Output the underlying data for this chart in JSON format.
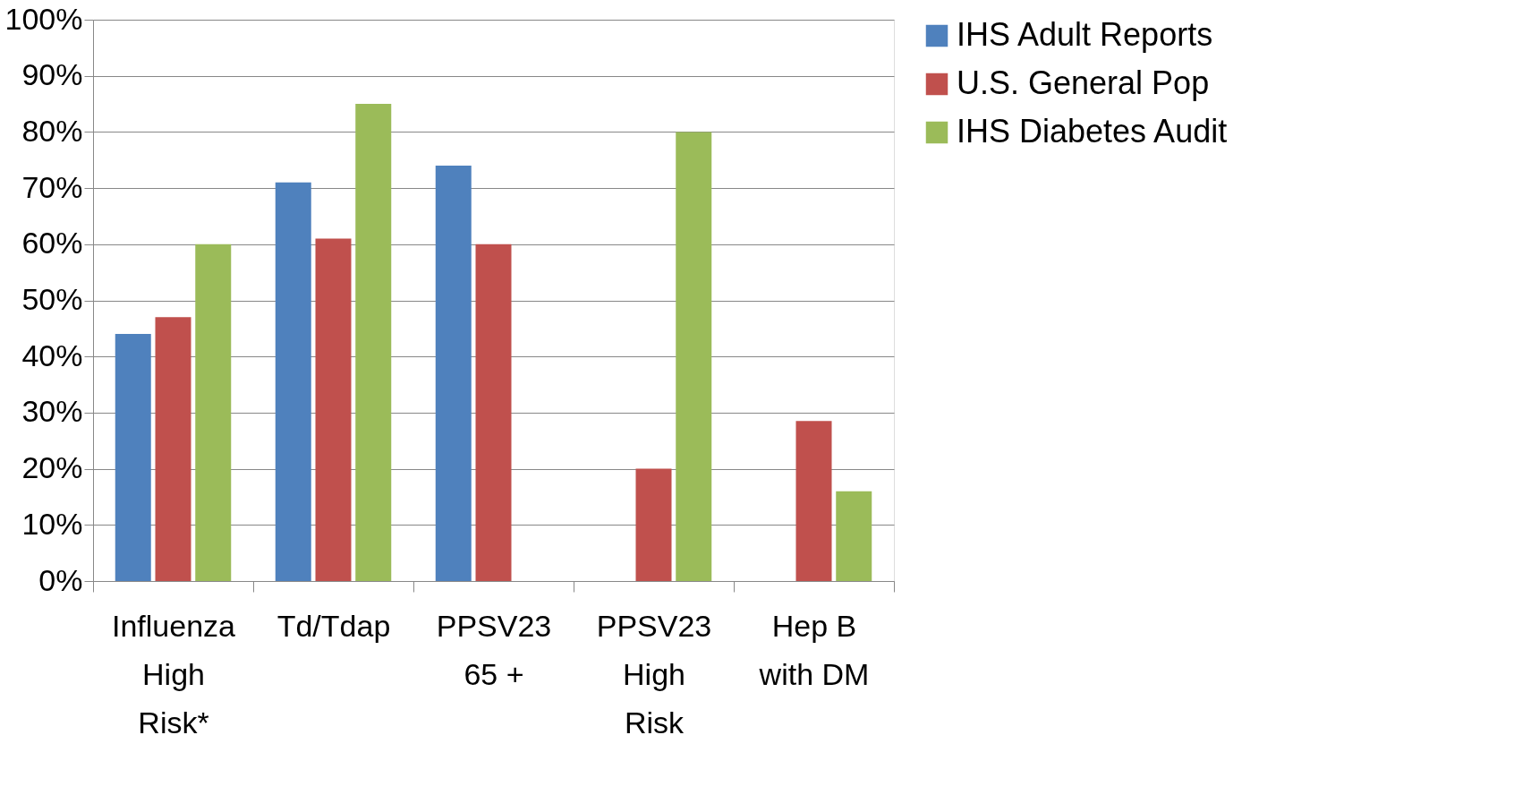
{
  "chart_data": {
    "type": "bar",
    "categories": [
      "Influenza High Risk*",
      "Td/Tdap",
      "PPSV23 65 +",
      "PPSV23 High Risk",
      "Hep B with DM"
    ],
    "series": [
      {
        "name": "IHS Adult Reports",
        "color": "#4f81bd",
        "values": [
          44,
          71,
          74,
          null,
          null
        ]
      },
      {
        "name": "U.S. General Pop",
        "color": "#c0504d",
        "values": [
          47,
          61,
          60,
          20,
          28.5
        ]
      },
      {
        "name": "IHS Diabetes Audit",
        "color": "#9bbb59",
        "values": [
          60,
          85,
          null,
          80,
          16
        ]
      }
    ],
    "ylim": [
      0,
      100
    ],
    "yticks": [
      {
        "value": 0,
        "label": "0%"
      },
      {
        "value": 10,
        "label": "10%"
      },
      {
        "value": 20,
        "label": "20%"
      },
      {
        "value": 30,
        "label": "30%"
      },
      {
        "value": 40,
        "label": "40%"
      },
      {
        "value": 50,
        "label": "50%"
      },
      {
        "value": 60,
        "label": "60%"
      },
      {
        "value": 70,
        "label": "70%"
      },
      {
        "value": 80,
        "label": "80%"
      },
      {
        "value": 90,
        "label": "90%"
      },
      {
        "value": 100,
        "label": "100%"
      }
    ],
    "grid": "y",
    "legend": "right"
  }
}
